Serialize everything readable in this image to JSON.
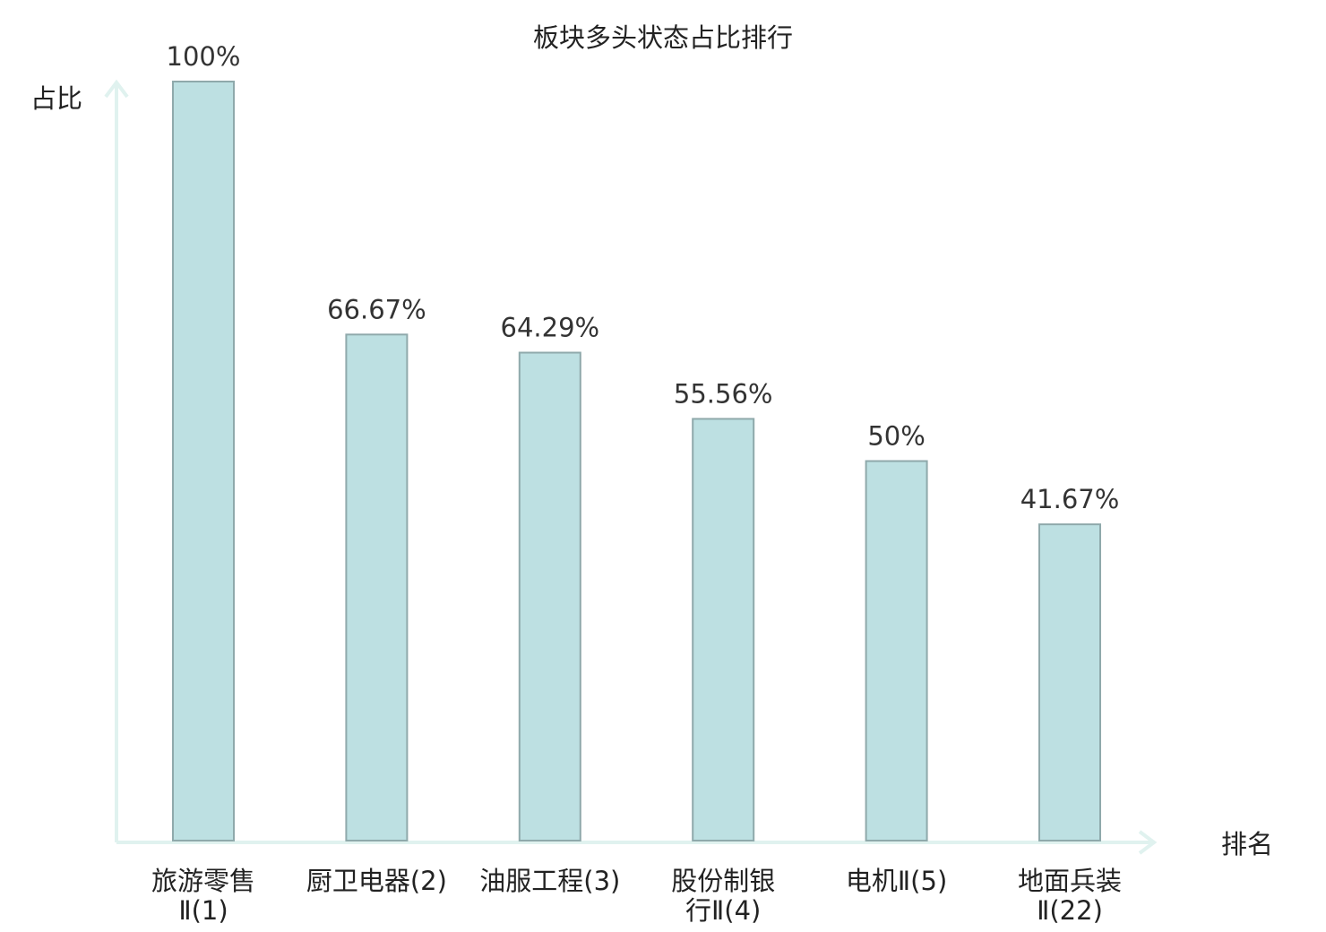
{
  "chart_data": {
    "type": "bar",
    "title": "板块多头状态占比排行",
    "ylabel": "占比",
    "xlabel": "排名",
    "ylim": [
      0,
      100
    ],
    "grid": false,
    "categories": [
      {
        "name": "旅游零售Ⅱ",
        "rank": "(1)",
        "lines": [
          "旅游零售",
          "Ⅱ(1)"
        ],
        "highlight": false
      },
      {
        "name": "厨卫电器",
        "rank": "(2)",
        "lines": [
          "厨卫电器(2)"
        ],
        "highlight": false
      },
      {
        "name": "油服工程",
        "rank": "(3)",
        "lines": [
          "油服工程(3)"
        ],
        "highlight": false
      },
      {
        "name": "股份制银行Ⅱ",
        "rank": "(4)",
        "lines": [
          "股份制银",
          "行Ⅱ(4)"
        ],
        "highlight": false
      },
      {
        "name": "电机Ⅱ",
        "rank": "(5)",
        "lines": [
          "电机Ⅱ(5)"
        ],
        "highlight": false
      },
      {
        "name": "地面兵装Ⅱ",
        "rank": "(22)",
        "lines": [
          "地面兵装",
          "Ⅱ(22)"
        ],
        "highlight": true
      }
    ],
    "values": [
      100,
      66.67,
      64.29,
      55.56,
      50,
      41.67
    ],
    "value_labels": [
      "100%",
      "66.67%",
      "64.29%",
      "55.56%",
      "50%",
      "41.67%"
    ]
  },
  "colors": {
    "bar_fill": "#bde0e2",
    "bar_stroke": "#8fa9ab",
    "axis": "#e0f2ef",
    "text": "#222222",
    "highlight": "#e0141c"
  }
}
